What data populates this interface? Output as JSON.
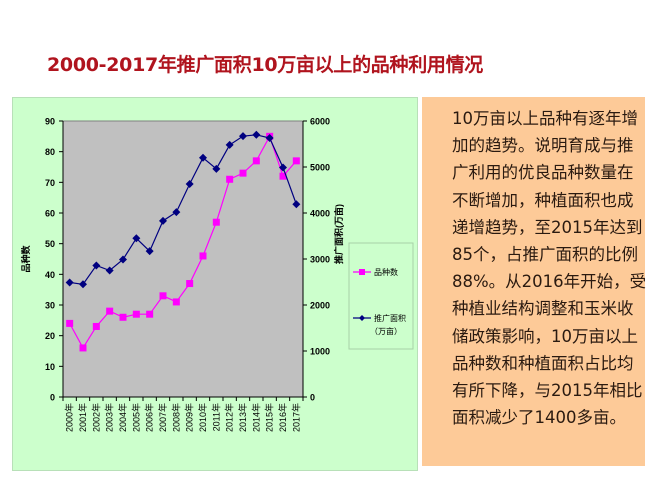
{
  "title": "2000-2017年推广面积10万亩以上的品种利用情况",
  "description_lines": [
    "10万亩以上品种有逐年增",
    "加的趋势。说明育成与推",
    "广利用的优良品种数量在",
    "不断增加，种植面积也成",
    "递增趋势，至2015年达到",
    "85个，占推广面积的比例",
    "88%。从2016年开始，受",
    "种植业结构调整和玉米收",
    "储政策影响，10万亩以上",
    "品种数和种植面积占比均",
    "有所下降，与2015年相比",
    "面积减少了1400多亩。"
  ],
  "chart_data": {
    "type": "line",
    "categories": [
      "2000年",
      "2001年",
      "2002年",
      "2003年",
      "2004年",
      "2005年",
      "2006年",
      "2007年",
      "2008年",
      "2009年",
      "2010年",
      "2011年",
      "2012年",
      "2013年",
      "2014年",
      "2015年",
      "2016年",
      "2017年"
    ],
    "ylabel": "品种数",
    "y2label": "推广面积(万亩)",
    "ylim": [
      0,
      90
    ],
    "y2lim": [
      0,
      6000
    ],
    "yticks": [
      "0",
      "10",
      "20",
      "30",
      "40",
      "50",
      "60",
      "70",
      "80",
      "90"
    ],
    "y2ticks": [
      "0",
      "1000",
      "2000",
      "3000",
      "4000",
      "5000",
      "6000"
    ],
    "grid": false,
    "legend": "right",
    "series": [
      {
        "name": "品种数",
        "axis": "left",
        "color": "#ff00ff",
        "marker": "square",
        "values": [
          24,
          16,
          23,
          28,
          26,
          27,
          27,
          33,
          31,
          37,
          46,
          57,
          71,
          73,
          77,
          85,
          72,
          77
        ]
      },
      {
        "name": "推广面积",
        "name_line2": "（万亩）",
        "axis": "right",
        "color": "#000080",
        "marker": "diamond",
        "values": [
          2490,
          2450,
          2860,
          2750,
          2990,
          3450,
          3170,
          3830,
          4020,
          4630,
          5200,
          4960,
          5480,
          5670,
          5700,
          5630,
          4990,
          4190
        ]
      }
    ],
    "plot_background": "#c0c0c0"
  }
}
